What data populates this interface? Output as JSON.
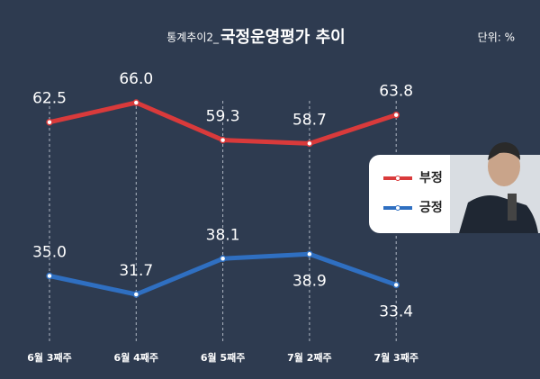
{
  "chart_data": {
    "type": "line",
    "title_prefix": "통계추이2_",
    "title": "국정운영평가 추이",
    "unit_note": "단위: %",
    "categories": [
      "6월 3째주",
      "6월 4째주",
      "6월 5째주",
      "7월 2째주",
      "7월 3째주"
    ],
    "series": [
      {
        "name": "부정",
        "color": "#d93a3b",
        "values": [
          62.5,
          66.0,
          59.3,
          58.7,
          63.8
        ],
        "value_labels": [
          "62.5",
          "66.0",
          "59.3",
          "58.7",
          "63.8"
        ]
      },
      {
        "name": "긍정",
        "color": "#2f6fc1",
        "values": [
          35.0,
          31.7,
          38.1,
          38.9,
          33.4
        ],
        "value_labels": [
          "35.0",
          "31.7",
          "38.1",
          "38.9",
          "33.4"
        ]
      }
    ]
  }
}
